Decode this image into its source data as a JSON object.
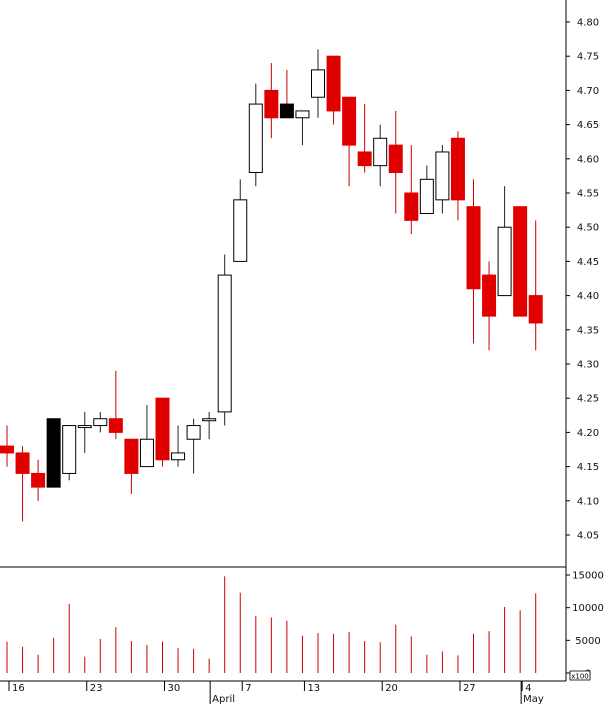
{
  "chart_data": [
    {
      "type": "candlestick",
      "title": "",
      "ylim": [
        4.0,
        4.83
      ],
      "y_ticks": [
        "4.80",
        "4.75",
        "4.70",
        "4.65",
        "4.60",
        "4.55",
        "4.50",
        "4.45",
        "4.40",
        "4.35",
        "4.30",
        "4.25",
        "4.20",
        "4.15",
        "4.10",
        "4.05"
      ],
      "grid": false,
      "up_color": "#ffffff",
      "down_color": "#e00000",
      "wick_color": "#cc0000",
      "candles": [
        {
          "i": 0,
          "open": 4.18,
          "high": 4.21,
          "low": 4.15,
          "close": 4.17
        },
        {
          "i": 1,
          "open": 4.17,
          "high": 4.18,
          "low": 4.07,
          "close": 4.14
        },
        {
          "i": 2,
          "open": 4.14,
          "high": 4.16,
          "low": 4.1,
          "close": 4.12
        },
        {
          "i": 3,
          "open": 4.22,
          "high": 4.22,
          "low": 4.12,
          "close": 4.12,
          "fill": "#000000"
        },
        {
          "i": 4,
          "open": 4.14,
          "high": 4.21,
          "low": 4.13,
          "close": 4.21
        },
        {
          "i": 5,
          "open": 4.21,
          "high": 4.23,
          "low": 4.17,
          "close": 4.21
        },
        {
          "i": 6,
          "open": 4.21,
          "high": 4.23,
          "low": 4.2,
          "close": 4.22
        },
        {
          "i": 7,
          "open": 4.22,
          "high": 4.29,
          "low": 4.19,
          "close": 4.2
        },
        {
          "i": 8,
          "open": 4.19,
          "high": 4.19,
          "low": 4.11,
          "close": 4.14
        },
        {
          "i": 9,
          "open": 4.15,
          "high": 4.24,
          "low": 4.15,
          "close": 4.19
        },
        {
          "i": 10,
          "open": 4.25,
          "high": 4.25,
          "low": 4.15,
          "close": 4.16
        },
        {
          "i": 11,
          "open": 4.16,
          "high": 4.21,
          "low": 4.15,
          "close": 4.17
        },
        {
          "i": 12,
          "open": 4.19,
          "high": 4.22,
          "low": 4.14,
          "close": 4.21
        },
        {
          "i": 13,
          "open": 4.22,
          "high": 4.23,
          "low": 4.19,
          "close": 4.22
        },
        {
          "i": 14,
          "open": 4.23,
          "high": 4.46,
          "low": 4.21,
          "close": 4.43
        },
        {
          "i": 15,
          "open": 4.45,
          "high": 4.57,
          "low": 4.45,
          "close": 4.54
        },
        {
          "i": 16,
          "open": 4.58,
          "high": 4.71,
          "low": 4.56,
          "close": 4.68
        },
        {
          "i": 17,
          "open": 4.7,
          "high": 4.74,
          "low": 4.63,
          "close": 4.66
        },
        {
          "i": 18,
          "open": 4.68,
          "high": 4.73,
          "low": 4.66,
          "close": 4.66,
          "fill": "#000000"
        },
        {
          "i": 19,
          "open": 4.66,
          "high": 4.67,
          "low": 4.62,
          "close": 4.67
        },
        {
          "i": 20,
          "open": 4.69,
          "high": 4.76,
          "low": 4.66,
          "close": 4.73
        },
        {
          "i": 21,
          "open": 4.75,
          "high": 4.75,
          "low": 4.65,
          "close": 4.67
        },
        {
          "i": 22,
          "open": 4.69,
          "high": 4.69,
          "low": 4.56,
          "close": 4.62
        },
        {
          "i": 23,
          "open": 4.61,
          "high": 4.68,
          "low": 4.58,
          "close": 4.59
        },
        {
          "i": 24,
          "open": 4.59,
          "high": 4.65,
          "low": 4.56,
          "close": 4.63
        },
        {
          "i": 25,
          "open": 4.62,
          "high": 4.67,
          "low": 4.52,
          "close": 4.58
        },
        {
          "i": 26,
          "open": 4.55,
          "high": 4.62,
          "low": 4.49,
          "close": 4.51
        },
        {
          "i": 27,
          "open": 4.52,
          "high": 4.59,
          "low": 4.52,
          "close": 4.57
        },
        {
          "i": 28,
          "open": 4.54,
          "high": 4.62,
          "low": 4.52,
          "close": 4.61
        },
        {
          "i": 29,
          "open": 4.63,
          "high": 4.64,
          "low": 4.51,
          "close": 4.54
        },
        {
          "i": 30,
          "open": 4.53,
          "high": 4.57,
          "low": 4.33,
          "close": 4.41
        },
        {
          "i": 31,
          "open": 4.43,
          "high": 4.45,
          "low": 4.32,
          "close": 4.37
        },
        {
          "i": 32,
          "open": 4.4,
          "high": 4.56,
          "low": 4.4,
          "close": 4.5
        },
        {
          "i": 33,
          "open": 4.53,
          "high": 4.53,
          "low": 4.37,
          "close": 4.37
        },
        {
          "i": 34,
          "open": 4.4,
          "high": 4.51,
          "low": 4.32,
          "close": 4.36
        }
      ]
    },
    {
      "type": "bar",
      "title": "",
      "ylim": [
        0,
        16500
      ],
      "y_ticks": [
        "15000",
        "10000",
        "5000",
        "0"
      ],
      "axis_badge": "x100",
      "bar_color": "#cc0000",
      "values": [
        4800,
        4000,
        2800,
        5400,
        10600,
        2500,
        5200,
        7000,
        4900,
        4300,
        4800,
        3800,
        3700,
        2200,
        14800,
        12300,
        8700,
        8500,
        8000,
        5700,
        6100,
        6000,
        6300,
        4900,
        4700,
        7400,
        5600,
        2800,
        3300,
        2700,
        6000,
        6400,
        10100,
        9600,
        12200
      ]
    }
  ],
  "x_axis": {
    "day_labels": [
      {
        "label": "16",
        "i": 0
      },
      {
        "label": "23",
        "i": 5
      },
      {
        "label": "30",
        "i": 10
      },
      {
        "label": "7",
        "i": 15
      },
      {
        "label": "13",
        "i": 19
      },
      {
        "label": "20",
        "i": 24
      },
      {
        "label": "27",
        "i": 29
      },
      {
        "label": "4",
        "i": 33
      }
    ],
    "month_labels": [
      {
        "label": "April",
        "i": 13
      },
      {
        "label": "May",
        "i": 33
      }
    ]
  }
}
